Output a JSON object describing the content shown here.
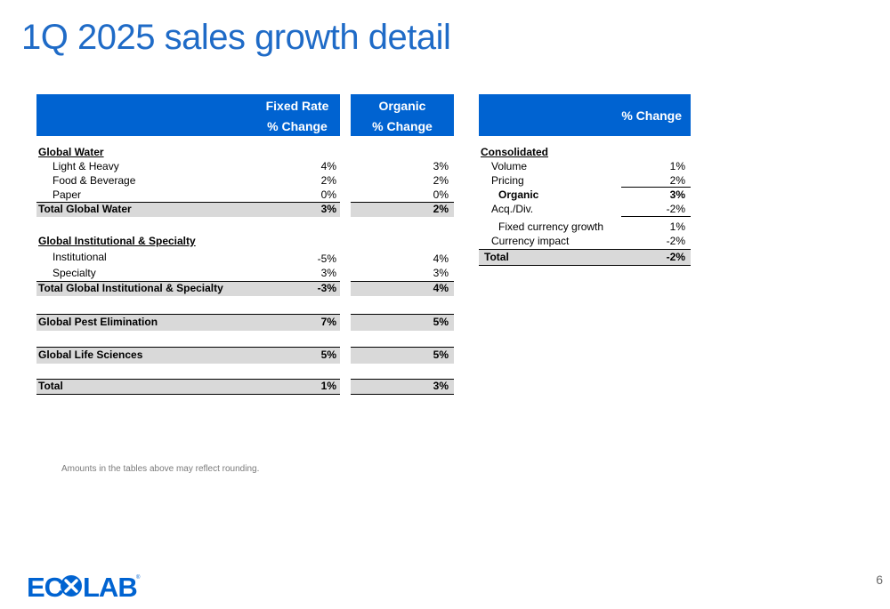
{
  "page": {
    "title": "1Q 2025 sales growth detail",
    "page_number": "6",
    "footnote": "Amounts in the tables above may reflect rounding."
  },
  "left_table": {
    "headers": {
      "col1_line1": "Fixed Rate",
      "col1_line2": "% Change",
      "col2_line1": "Organic",
      "col2_line2": "% Change"
    },
    "rows": {
      "gw_head": "Global Water",
      "light_heavy": {
        "label": "Light & Heavy",
        "fixed": "4%",
        "organic": "3%"
      },
      "food_bev": {
        "label": "Food & Beverage",
        "fixed": "2%",
        "organic": "2%"
      },
      "paper": {
        "label": "Paper",
        "fixed": "0%",
        "organic": "0%"
      },
      "total_gw": {
        "label": "Total Global Water",
        "fixed": "3%",
        "organic": "2%"
      },
      "gis_head": "Global Institutional & Specialty",
      "institutional": {
        "label": "Institutional",
        "fixed": "-5%",
        "organic": "4%"
      },
      "specialty": {
        "label": "Specialty",
        "fixed": "3%",
        "organic": "3%"
      },
      "total_gis": {
        "label": "Total Global Institutional & Specialty",
        "fixed": "-3%",
        "organic": "4%"
      },
      "gpe": {
        "label": "Global Pest Elimination",
        "fixed": "7%",
        "organic": "5%"
      },
      "gls": {
        "label": "Global Life Sciences",
        "fixed": "5%",
        "organic": "5%"
      },
      "total": {
        "label": "Total",
        "fixed": "1%",
        "organic": "3%"
      }
    }
  },
  "right_table": {
    "header": "% Change",
    "rows": {
      "head": "Consolidated",
      "volume": {
        "label": "Volume",
        "value": "1%"
      },
      "pricing": {
        "label": "Pricing",
        "value": "2%"
      },
      "organic": {
        "label": "Organic",
        "value": "3%"
      },
      "acq": {
        "label": "Acq./Div.",
        "value": "-2%"
      },
      "fixed_cur": {
        "label": "Fixed currency growth",
        "value": "1%"
      },
      "currency": {
        "label": "Currency impact",
        "value": "-2%"
      },
      "total": {
        "label": "Total",
        "value": "-2%"
      }
    }
  },
  "logo": {
    "text": "ECOLAB",
    "color": "#0063d1"
  }
}
